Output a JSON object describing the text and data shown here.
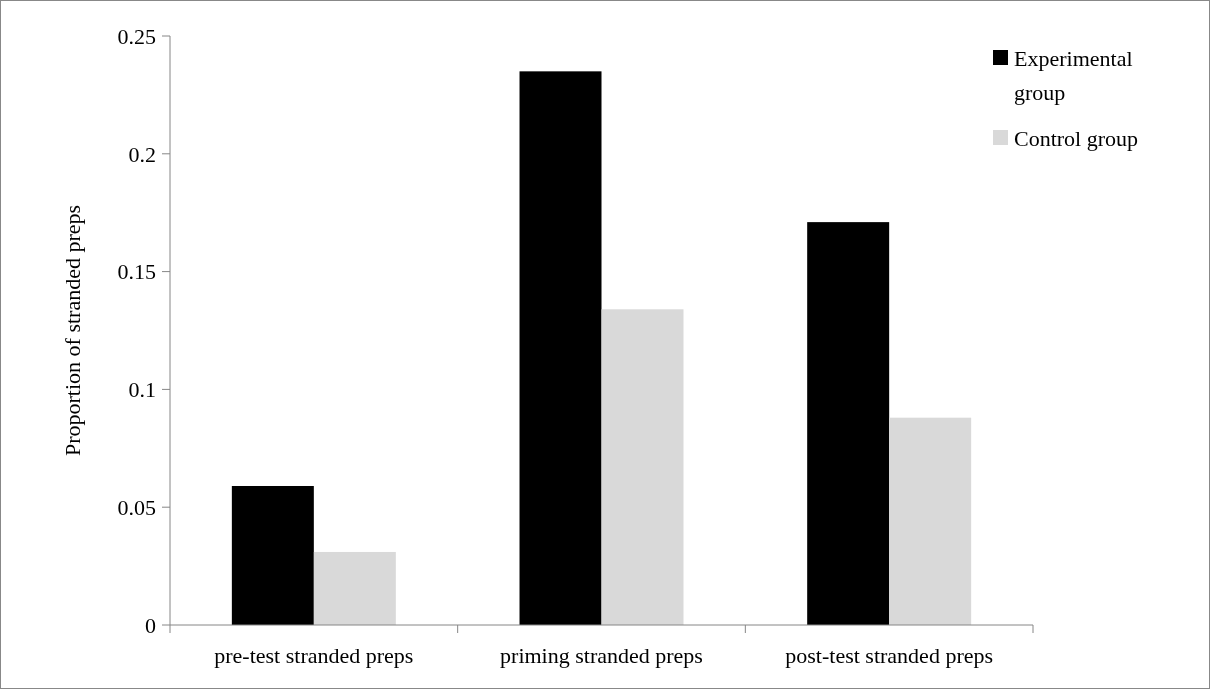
{
  "chart_data": {
    "type": "bar",
    "ylabel": "Proportion of stranded preps",
    "categories": [
      "pre-test stranded preps",
      "priming stranded preps",
      "post-test stranded preps"
    ],
    "series": [
      {
        "name": "Experimental group",
        "color": "#000000",
        "values": [
          0.059,
          0.235,
          0.171
        ]
      },
      {
        "name": "Control group",
        "color": "#d9d9d9",
        "values": [
          0.031,
          0.134,
          0.088
        ]
      }
    ],
    "ylim": [
      0,
      0.25
    ],
    "yticks": [
      0,
      0.05,
      0.1,
      0.15,
      0.2,
      0.25
    ],
    "grid": false,
    "legend": "top right"
  }
}
